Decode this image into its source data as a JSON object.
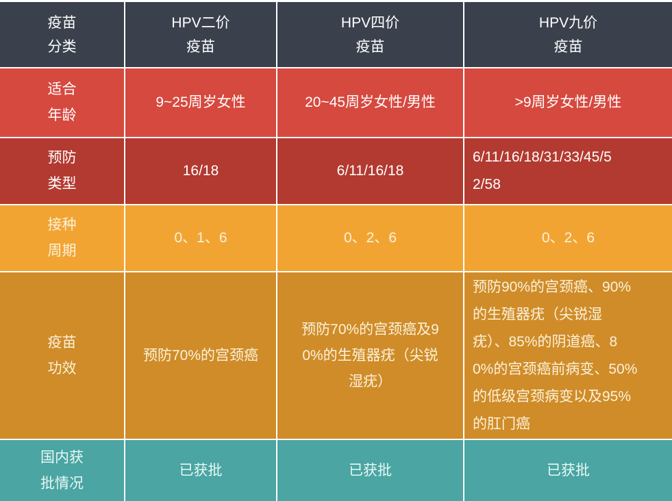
{
  "colors": {
    "header_bg": "#3a414c",
    "age_row_bg": "#d6493f",
    "type_row_bg": "#b33a30",
    "cycle_row_bg": "#f2a433",
    "effect_row_bg": "#d08c29",
    "approval_row_bg": "#4aa5a3",
    "grid_line": "#ffffff",
    "header_text": "#ffffff",
    "cream_text": "#fbf2da"
  },
  "table": {
    "corner_label": "疫苗\n分类",
    "headers": [
      "HPV二价\n疫苗",
      "HPV四价\n疫苗",
      "HPV九价\n疫苗"
    ],
    "rows": [
      {
        "label": "适合\n年龄",
        "cells": [
          "9~25周岁女性",
          "20~45周岁女性/男性",
          ">9周岁女性/男性"
        ]
      },
      {
        "label": "预防\n类型",
        "cells": [
          "16/18",
          "6/11/16/18",
          "6/11/16/18/31/33/45/5\n2/58"
        ]
      },
      {
        "label": "接种\n周期",
        "cells": [
          "0、1、6",
          "0、2、6",
          "0、2、6"
        ]
      },
      {
        "label": "疫苗\n功效",
        "cells": [
          "预防70%的宫颈癌",
          "预防70%的宫颈癌及9\n0%的生殖器疣（尖锐\n湿疣）",
          "预防90%的宫颈癌、90%\n的生殖器疣（尖锐湿\n疣）、85%的阴道癌、8\n0%的宫颈癌前病变、50%\n的低级宫颈病变以及95%\n的肛门癌"
        ]
      },
      {
        "label": "国内获\n批情况",
        "cells": [
          "已获批",
          "已获批",
          "已获批"
        ]
      }
    ]
  },
  "chart_data": {
    "type": "table",
    "columns": [
      "疫苗分类",
      "HPV二价疫苗",
      "HPV四价疫苗",
      "HPV九价疫苗"
    ],
    "rows": [
      [
        "适合年龄",
        "9~25周岁女性",
        "20~45周岁女性/男性",
        ">9周岁女性/男性"
      ],
      [
        "预防类型",
        "16/18",
        "6/11/16/18",
        "6/11/16/18/31/33/45/52/58"
      ],
      [
        "接种周期",
        "0、1、6",
        "0、2、6",
        "0、2、6"
      ],
      [
        "疫苗功效",
        "预防70%的宫颈癌",
        "预防70%的宫颈癌及90%的生殖器疣（尖锐湿疣）",
        "预防90%的宫颈癌、90%的生殖器疣（尖锐湿疣）、85%的阴道癌、80%的宫颈癌前病变、50%的低级宫颈病变以及95%的肛门癌"
      ],
      [
        "国内获批情况",
        "已获批",
        "已获批",
        "已获批"
      ]
    ],
    "layout": "color-banded comparison table, white gridlines, no outer border except white top edge"
  }
}
